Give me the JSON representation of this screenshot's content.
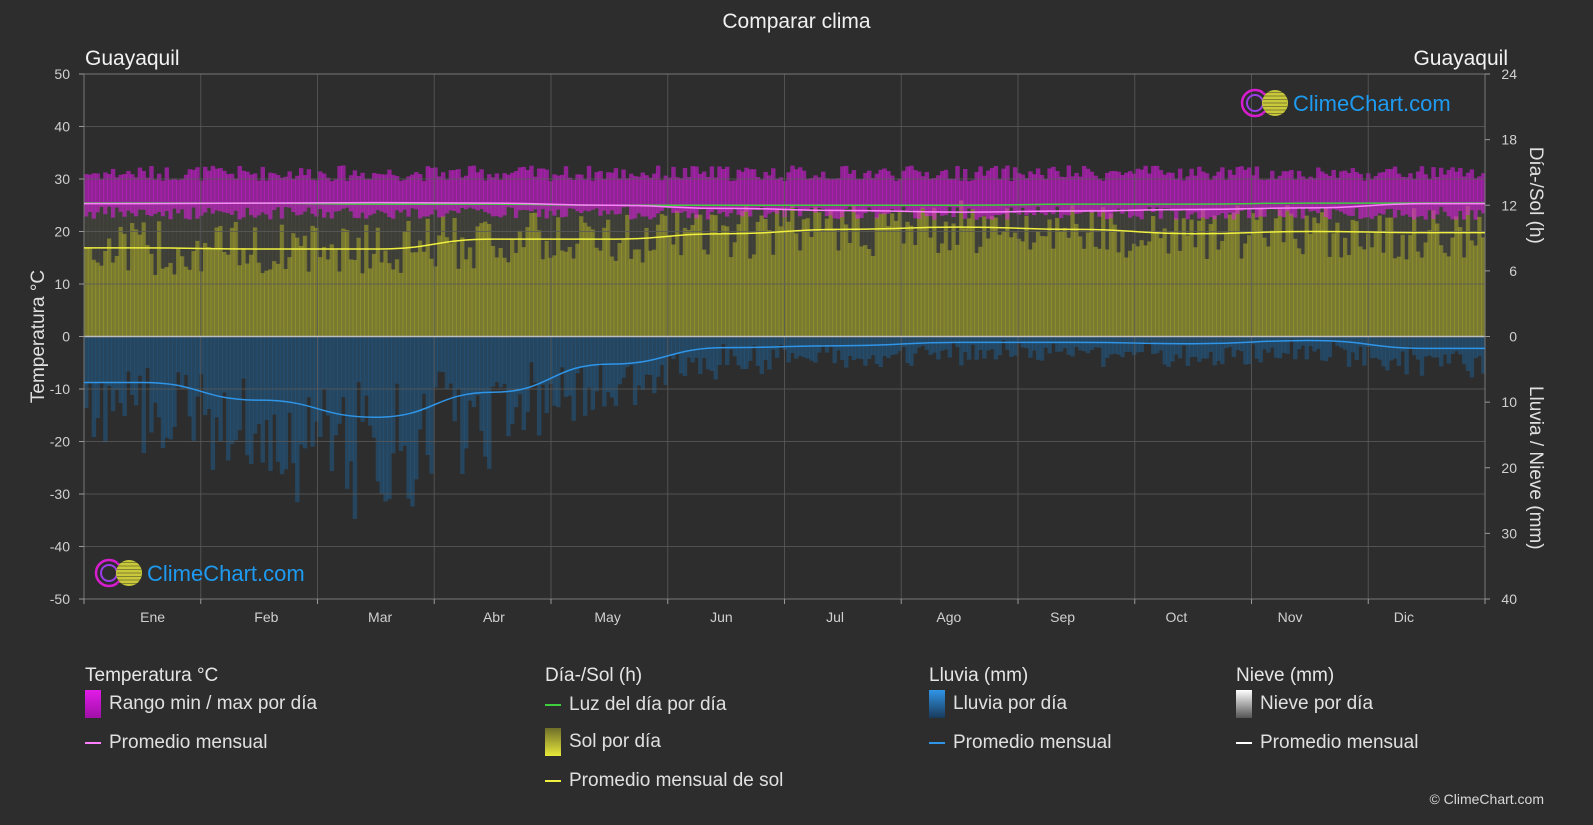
{
  "title": "Comparar clima",
  "location_left": "Guayaquil",
  "location_right": "Guayaquil",
  "watermark": "ClimeChart.com",
  "copyright": "© ClimeChart.com",
  "colors": {
    "background": "#2d2d2d",
    "temp_range": "#e21ce8",
    "temp_avg": "#ff80ff",
    "daylight": "#3ecf3e",
    "sun_bar": "#b8b832",
    "sun_avg": "#f0f040",
    "rain_bar": "#1e6fb0",
    "rain_avg": "#2f95e8",
    "snow": "#ffffff",
    "brand": "#1e9bf0"
  },
  "legend": {
    "temperature": {
      "header": "Temperatura °C",
      "items": [
        "Rango min / max por día",
        "Promedio mensual"
      ]
    },
    "sun": {
      "header": "Día-/Sol (h)",
      "items": [
        "Luz del día por día",
        "Sol por día",
        "Promedio mensual de sol"
      ]
    },
    "rain": {
      "header": "Lluvia (mm)",
      "items": [
        "Lluvia por día",
        "Promedio mensual"
      ]
    },
    "snow": {
      "header": "Nieve (mm)",
      "items": [
        "Nieve por día",
        "Promedio mensual"
      ]
    }
  },
  "chart_data": {
    "type": "line",
    "title": "Comparar clima",
    "x": [
      "Ene",
      "Feb",
      "Mar",
      "Abr",
      "May",
      "Jun",
      "Jul",
      "Ago",
      "Sep",
      "Oct",
      "Nov",
      "Dic"
    ],
    "y_left": {
      "label": "Temperatura °C",
      "range": [
        -50,
        50
      ],
      "ticks": [
        50,
        40,
        30,
        20,
        10,
        0,
        -10,
        -20,
        -30,
        -40,
        -50
      ]
    },
    "y_right_top": {
      "label": "Día-/Sol (h)",
      "range": [
        0,
        24
      ],
      "ticks": [
        24,
        18,
        12,
        6,
        0
      ]
    },
    "y_right_bottom": {
      "label": "Lluvia / Nieve (mm)",
      "range": [
        0,
        40
      ],
      "ticks": [
        0,
        10,
        20,
        30,
        40
      ]
    },
    "grid": true,
    "series": [
      {
        "name": "Promedio mensual",
        "axis": "temperature_c",
        "values": [
          25.3,
          25.4,
          25.5,
          25.4,
          25.0,
          24.4,
          24.0,
          23.7,
          23.9,
          24.2,
          24.5,
          25.3
        ]
      },
      {
        "name": "Luz del día por día",
        "axis": "hours",
        "values": [
          12.2,
          12.2,
          12.1,
          12.1,
          12.0,
          12.0,
          12.0,
          12.0,
          12.1,
          12.1,
          12.2,
          12.2
        ]
      },
      {
        "name": "Promedio mensual de sol",
        "axis": "hours",
        "values": [
          8.1,
          8.0,
          8.0,
          8.9,
          8.9,
          9.4,
          9.8,
          10.0,
          9.8,
          9.4,
          9.6,
          9.5
        ]
      },
      {
        "name": "Promedio mensual",
        "axis": "precip_mm",
        "values": [
          7.0,
          9.7,
          12.3,
          8.5,
          4.2,
          1.7,
          1.4,
          0.9,
          0.9,
          1.1,
          0.6,
          1.8
        ]
      }
    ],
    "temp_range_daily": {
      "min": 23.5,
      "max": 30.5
    }
  }
}
